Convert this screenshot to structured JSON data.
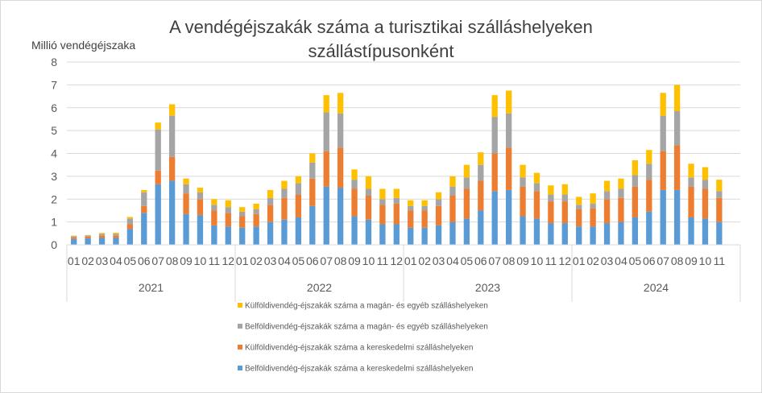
{
  "chart_data": {
    "type": "bar",
    "stacked": true,
    "title_line1": "A vendégéjszakák száma a turisztikai szálláshelyeken",
    "title_line2": "szállástípusonként",
    "ylabel": "Millió vendégéjszaka",
    "ylim": [
      0,
      8
    ],
    "yticks": [
      0,
      1,
      2,
      3,
      4,
      5,
      6,
      7,
      8
    ],
    "years": [
      "2021",
      "2022",
      "2023",
      "2024"
    ],
    "month_labels": [
      [
        "01",
        "02",
        "03",
        "04",
        "05",
        "06",
        "07",
        "08",
        "09",
        "10",
        "11",
        "12"
      ],
      [
        "01",
        "02",
        "03",
        "04",
        "05",
        "06",
        "07",
        "08",
        "09",
        "10",
        "11",
        "12"
      ],
      [
        "01",
        "02",
        "03",
        "04",
        "05",
        "06",
        "07",
        "08",
        "09",
        "10",
        "11",
        "12"
      ],
      [
        "01",
        "02",
        "03",
        "04",
        "05",
        "06",
        "07",
        "08",
        "09",
        "10",
        "11"
      ]
    ],
    "series": [
      {
        "name": "Belföldivendég-éjszakák száma a kereskedelmi szálláshelyeken",
        "color": "#5b9bd5",
        "values": [
          0.25,
          0.28,
          0.3,
          0.3,
          0.7,
          1.4,
          2.65,
          2.8,
          1.35,
          1.3,
          0.85,
          0.8,
          0.75,
          0.8,
          1.0,
          1.1,
          1.2,
          1.7,
          2.55,
          2.5,
          1.25,
          1.1,
          0.9,
          0.9,
          0.75,
          0.75,
          0.85,
          1.0,
          1.15,
          1.5,
          2.35,
          2.4,
          1.25,
          1.15,
          0.95,
          0.95,
          0.8,
          0.8,
          0.95,
          1.0,
          1.2,
          1.45,
          2.4,
          2.4,
          1.2,
          1.15,
          1.0
        ]
      },
      {
        "name": "Külföldivendég-éjszakák száma a kereskedelmi szálláshelyeken",
        "color": "#ed7d31",
        "values": [
          0.08,
          0.08,
          0.1,
          0.1,
          0.2,
          0.3,
          0.6,
          1.05,
          0.9,
          0.7,
          0.65,
          0.6,
          0.5,
          0.55,
          0.75,
          0.95,
          1.0,
          1.2,
          1.55,
          1.75,
          1.2,
          1.05,
          0.85,
          0.9,
          0.75,
          0.75,
          0.85,
          1.15,
          1.3,
          1.3,
          1.65,
          1.85,
          1.3,
          1.2,
          0.95,
          0.95,
          0.75,
          0.8,
          1.05,
          1.05,
          1.35,
          1.4,
          1.7,
          1.95,
          1.35,
          1.3,
          1.05
        ]
      },
      {
        "name": "Belföldivendég-éjszakák száma a magán- és egyéb szálláshelyeken",
        "color": "#a5a5a5",
        "values": [
          0.05,
          0.05,
          0.08,
          0.08,
          0.25,
          0.6,
          1.8,
          1.8,
          0.4,
          0.3,
          0.25,
          0.25,
          0.2,
          0.2,
          0.3,
          0.4,
          0.5,
          0.7,
          1.7,
          1.5,
          0.4,
          0.3,
          0.25,
          0.25,
          0.2,
          0.2,
          0.3,
          0.4,
          0.5,
          0.7,
          1.6,
          1.5,
          0.4,
          0.35,
          0.3,
          0.3,
          0.2,
          0.2,
          0.35,
          0.4,
          0.5,
          0.7,
          1.55,
          1.5,
          0.4,
          0.4,
          0.3
        ]
      },
      {
        "name": "Külföldivendég-éjszakák száma a magán- és egyéb szálláshelyeken",
        "color": "#ffc000",
        "values": [
          0.02,
          0.02,
          0.04,
          0.05,
          0.07,
          0.1,
          0.3,
          0.5,
          0.25,
          0.2,
          0.25,
          0.3,
          0.2,
          0.25,
          0.35,
          0.35,
          0.3,
          0.4,
          0.75,
          0.9,
          0.45,
          0.55,
          0.45,
          0.4,
          0.25,
          0.25,
          0.3,
          0.45,
          0.55,
          0.55,
          0.95,
          1.0,
          0.55,
          0.45,
          0.4,
          0.45,
          0.35,
          0.45,
          0.45,
          0.45,
          0.65,
          0.6,
          1.0,
          1.15,
          0.6,
          0.55,
          0.5
        ]
      }
    ],
    "legend_order": [
      3,
      2,
      1,
      0
    ],
    "legend_position": "bottom"
  }
}
